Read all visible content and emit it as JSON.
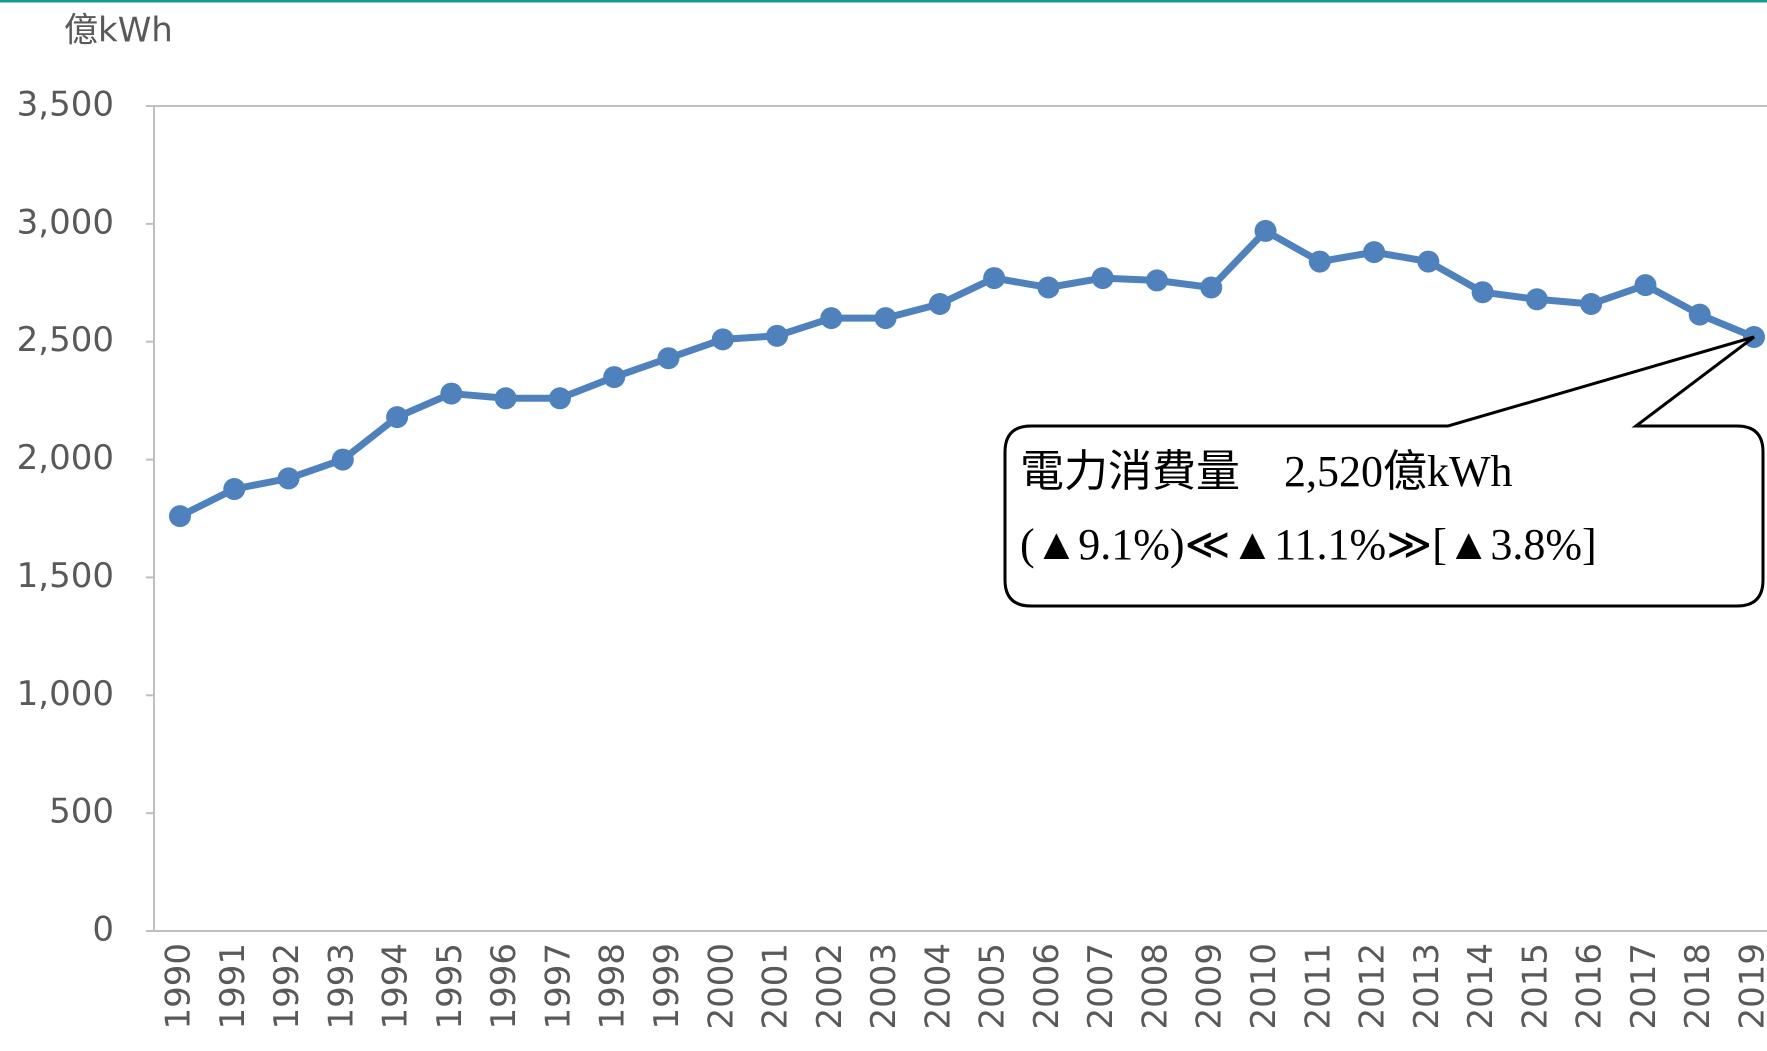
{
  "chart_data": {
    "type": "line",
    "unit_label": "億kWh",
    "categories": [
      "1990",
      "1991",
      "1992",
      "1993",
      "1994",
      "1995",
      "1996",
      "1997",
      "1998",
      "1999",
      "2000",
      "2001",
      "2002",
      "2003",
      "2004",
      "2005",
      "2006",
      "2007",
      "2008",
      "2009",
      "2010",
      "2011",
      "2012",
      "2013",
      "2014",
      "2015",
      "2016",
      "2017",
      "2018",
      "2019"
    ],
    "series": [
      {
        "name": "電力消費量",
        "color": "#4f81bd",
        "values": [
          1760,
          1875,
          1920,
          2000,
          2180,
          2280,
          2260,
          2260,
          2350,
          2430,
          2510,
          2525,
          2600,
          2600,
          2660,
          2770,
          2730,
          2770,
          2760,
          2730,
          2970,
          2840,
          2880,
          2840,
          2710,
          2680,
          2660,
          2740,
          2615,
          2520
        ]
      }
    ],
    "ylim": [
      0,
      3500
    ],
    "yticks": [
      0,
      500,
      {
        "value": 1000,
        "label": "1,000"
      },
      {
        "value": 1500,
        "label": "1,500"
      },
      {
        "value": 2000,
        "label": "2,000"
      },
      {
        "value": 2500,
        "label": "2,500"
      },
      {
        "value": 3000,
        "label": "3,000"
      },
      {
        "value": 3500,
        "label": "3,500"
      }
    ],
    "annotation": {
      "line1": "電力消費量　2,520億kWh",
      "line2": "(▲9.1%)≪▲11.1%≫[▲3.8%]"
    }
  }
}
